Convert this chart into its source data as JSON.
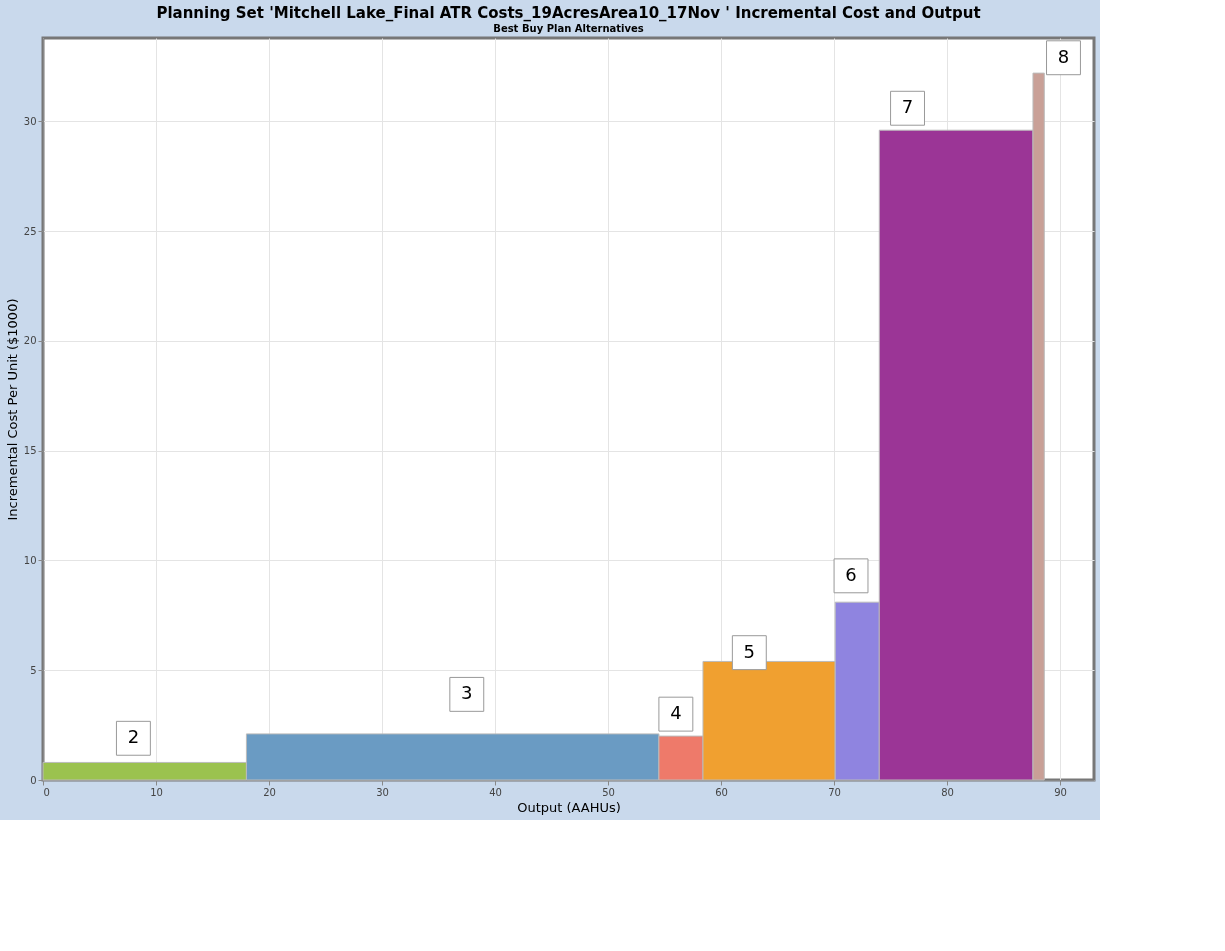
{
  "chart_data": {
    "type": "histogram",
    "title": "Planning Set 'Mitchell Lake_Final ATR Costs_19AcresArea10_17Nov ' Incremental Cost and Output",
    "subtitle": "Best Buy Plan Alternatives",
    "xlabel": "Output (AAHUs)",
    "ylabel": "Incremental Cost Per Unit ($1000)",
    "bins": [
      0,
      18,
      54.5,
      58.4,
      70.1,
      74,
      87.6,
      88.6
    ],
    "values": [
      0.8,
      2.1,
      2.0,
      5.4,
      8.1,
      29.6,
      32.2
    ],
    "colors": [
      "#9bc24f",
      "#6a9bc3",
      "#ee7a6a",
      "#f0a030",
      "#8f84e0",
      "#9b3596",
      "#c9a097"
    ],
    "annotations": [
      {
        "text": "2",
        "x": 8,
        "y": 1.9
      },
      {
        "text": "3",
        "x": 37.5,
        "y": 3.9
      },
      {
        "text": "4",
        "x": 56,
        "y": 3.0
      },
      {
        "text": "5",
        "x": 62.5,
        "y": 5.8
      },
      {
        "text": "6",
        "x": 71.5,
        "y": 9.3
      },
      {
        "text": "7",
        "x": 76.5,
        "y": 30.6
      },
      {
        "text": "8",
        "x": 90.3,
        "y": 32.9
      }
    ],
    "xlim": [
      0,
      93
    ],
    "xticks": [
      0,
      10,
      20,
      30,
      40,
      50,
      60,
      70,
      80,
      90
    ],
    "ylim": [
      0,
      33.8
    ],
    "yticks": [
      0,
      5,
      10,
      15,
      20,
      25,
      30
    ],
    "grid": true
  }
}
